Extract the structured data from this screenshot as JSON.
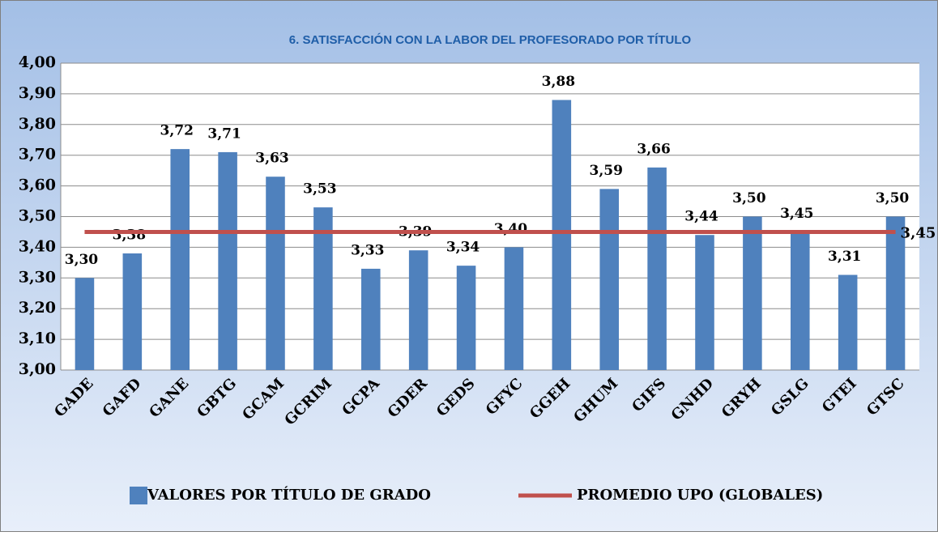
{
  "chart_data": {
    "type": "bar",
    "title": "6. SATISFACCIÓN CON LA LABOR DEL PROFESORADO POR TÍTULO",
    "categories": [
      "GADE",
      "GAFD",
      "GANE",
      "GBTG",
      "GCAM",
      "GCRIM",
      "GCPA",
      "GDER",
      "GEDS",
      "GFYC",
      "GGEH",
      "GHUM",
      "GIFS",
      "GNHD",
      "GRYH",
      "GSLG",
      "GTEI",
      "GTSC"
    ],
    "series": [
      {
        "name": "VALORES POR TÍTULO DE GRADO",
        "type": "bar",
        "color": "#4f81bd",
        "values": [
          3.3,
          3.38,
          3.72,
          3.71,
          3.63,
          3.53,
          3.33,
          3.39,
          3.34,
          3.4,
          3.88,
          3.59,
          3.66,
          3.44,
          3.5,
          3.45,
          3.31,
          3.5
        ],
        "value_labels": [
          "3,30",
          "3,38",
          "3,72",
          "3,71",
          "3,63",
          "3,53",
          "3,33",
          "3,39",
          "3,34",
          "3,40",
          "3,88",
          "3,59",
          "3,66",
          "3,44",
          "3,50",
          "3,45",
          "3,31",
          "3,50"
        ]
      },
      {
        "name": "PROMEDIO UPO (GLOBALES)",
        "type": "line",
        "color": "#c0504d",
        "values": [
          3.45,
          3.45,
          3.45,
          3.45,
          3.45,
          3.45,
          3.45,
          3.45,
          3.45,
          3.45,
          3.45,
          3.45,
          3.45,
          3.45,
          3.45,
          3.45,
          3.45,
          3.45
        ],
        "value_labels": [
          null,
          null,
          null,
          null,
          null,
          null,
          null,
          null,
          null,
          null,
          null,
          null,
          null,
          null,
          null,
          null,
          null,
          "3,45"
        ]
      }
    ],
    "ylim": [
      3.0,
      4.0
    ],
    "yticks": [
      {
        "value": 3.0,
        "label": "3,00"
      },
      {
        "value": 3.1,
        "label": "3,10"
      },
      {
        "value": 3.2,
        "label": "3,20"
      },
      {
        "value": 3.3,
        "label": "3,30"
      },
      {
        "value": 3.4,
        "label": "3,40"
      },
      {
        "value": 3.5,
        "label": "3,50"
      },
      {
        "value": 3.6,
        "label": "3,60"
      },
      {
        "value": 3.7,
        "label": "3,70"
      },
      {
        "value": 3.8,
        "label": "3,80"
      },
      {
        "value": 3.9,
        "label": "3,90"
      },
      {
        "value": 4.0,
        "label": "4,00"
      }
    ],
    "grid": true,
    "legend": "bottom"
  }
}
